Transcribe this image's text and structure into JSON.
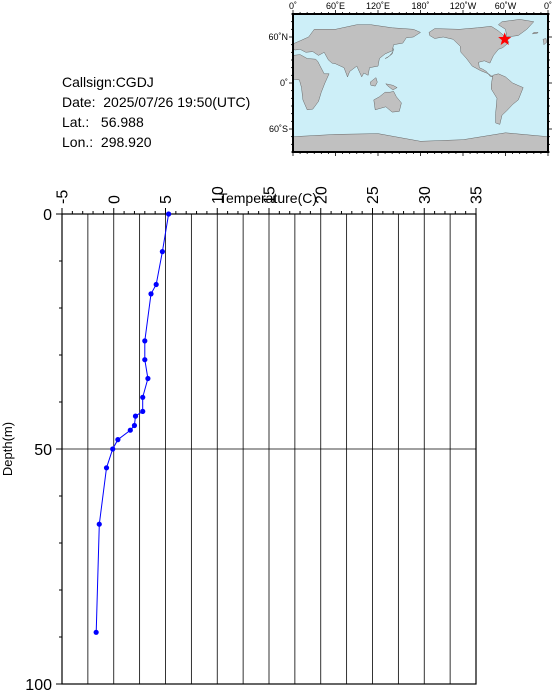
{
  "station": {
    "callsign": "Callsign:CGDJ",
    "date": "Date:  2025/07/26 19:50(UTC)",
    "lat": "Lat.:   56.988",
    "lon": "Lon.:  298.920"
  },
  "map": {
    "lon_labels": [
      "0˚",
      "60˚E",
      "120˚E",
      "180˚",
      "120˚W",
      "60˚W",
      "0˚"
    ],
    "lat_labels": [
      "60˚N",
      "0˚",
      "60˚S"
    ],
    "marker_lon": 298.92,
    "marker_lat": 56.988,
    "marker_color": "#ff0000",
    "ocean_color": "#cdeff8",
    "land_color": "#c0c0c0"
  },
  "chart_data": {
    "type": "line",
    "xlabel": "Temperature(C)",
    "ylabel": "Depth(m)",
    "xlim": [
      -5,
      35
    ],
    "ylim": [
      0,
      100
    ],
    "y_inverted": true,
    "x_axis_position": "top",
    "xticks": [
      -5,
      0,
      5,
      10,
      15,
      20,
      25,
      30,
      35
    ],
    "yticks": [
      0,
      50,
      100
    ],
    "grid": true,
    "series_color": "#0000ff",
    "points": [
      {
        "t": 5.3,
        "d": 0.0
      },
      {
        "t": 4.7,
        "d": 8.0
      },
      {
        "t": 4.1,
        "d": 15.0
      },
      {
        "t": 3.6,
        "d": 17.0
      },
      {
        "t": 3.0,
        "d": 27.0
      },
      {
        "t": 3.0,
        "d": 31.0
      },
      {
        "t": 3.3,
        "d": 35.0
      },
      {
        "t": 2.8,
        "d": 39.0
      },
      {
        "t": 2.8,
        "d": 42.0
      },
      {
        "t": 2.1,
        "d": 43.0
      },
      {
        "t": 2.0,
        "d": 45.0
      },
      {
        "t": 1.6,
        "d": 46.0
      },
      {
        "t": 0.4,
        "d": 48.0
      },
      {
        "t": -0.1,
        "d": 50.0
      },
      {
        "t": -0.7,
        "d": 54.0
      },
      {
        "t": -1.4,
        "d": 66.0
      },
      {
        "t": -1.7,
        "d": 89.0
      }
    ]
  }
}
